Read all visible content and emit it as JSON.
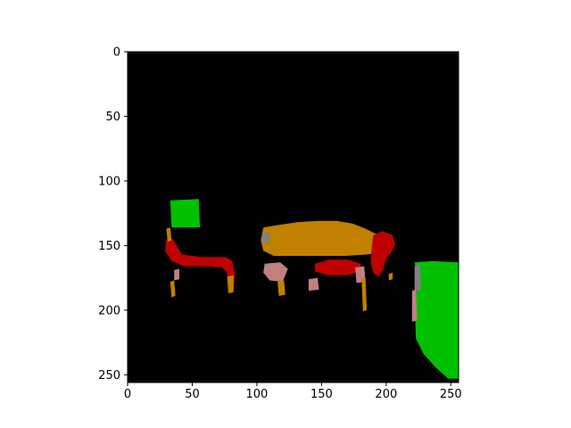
{
  "chart_data": {
    "type": "heatmap",
    "title": "",
    "xlabel": "",
    "ylabel": "",
    "xlim": [
      0,
      256
    ],
    "ylim": [
      256,
      0
    ],
    "grid": false,
    "legend": "none",
    "x_ticks": [
      "0",
      "50",
      "100",
      "150",
      "200",
      "250"
    ],
    "y_ticks": [
      "0",
      "50",
      "100",
      "150",
      "200",
      "250"
    ],
    "background_color": "#000000",
    "colors": {
      "green": "#00c000",
      "orange": "#c08000",
      "red": "#c00000",
      "pink": "#c08080",
      "gray": "#808080"
    },
    "regions": [
      {
        "color": "green",
        "points": [
          [
            33,
            115
          ],
          [
            55,
            114
          ],
          [
            56,
            136
          ],
          [
            34,
            136
          ]
        ]
      },
      {
        "color": "green",
        "points": [
          [
            222,
            163
          ],
          [
            235,
            162
          ],
          [
            256,
            163
          ],
          [
            256,
            253
          ],
          [
            248,
            253
          ],
          [
            238,
            244
          ],
          [
            229,
            234
          ],
          [
            223,
            222
          ],
          [
            222,
            195
          ],
          [
            224,
            177
          ]
        ]
      },
      {
        "color": "orange",
        "points": [
          [
            105,
            136
          ],
          [
            117,
            134
          ],
          [
            131,
            132
          ],
          [
            147,
            131
          ],
          [
            162,
            131
          ],
          [
            174,
            133
          ],
          [
            184,
            137
          ],
          [
            192,
            141
          ],
          [
            198,
            146
          ],
          [
            200,
            150
          ],
          [
            197,
            155
          ],
          [
            185,
            157
          ],
          [
            168,
            158
          ],
          [
            148,
            158
          ],
          [
            130,
            158
          ],
          [
            113,
            158
          ],
          [
            105,
            154
          ],
          [
            103,
            146
          ]
        ]
      },
      {
        "color": "red",
        "points": [
          [
            30,
            145
          ],
          [
            35,
            145
          ],
          [
            42,
            157
          ],
          [
            58,
            159
          ],
          [
            76,
            159
          ],
          [
            81,
            162
          ],
          [
            83,
            172
          ],
          [
            82,
            183
          ],
          [
            79,
            184
          ],
          [
            77,
            171
          ],
          [
            73,
            167
          ],
          [
            62,
            166
          ],
          [
            44,
            166
          ],
          [
            34,
            162
          ],
          [
            29,
            154
          ]
        ]
      },
      {
        "color": "red",
        "points": [
          [
            190,
            142
          ],
          [
            197,
            139
          ],
          [
            205,
            142
          ],
          [
            207,
            149
          ],
          [
            204,
            155
          ],
          [
            200,
            160
          ],
          [
            198,
            168
          ],
          [
            194,
            174
          ],
          [
            190,
            171
          ],
          [
            188,
            163
          ],
          [
            189,
            150
          ]
        ]
      },
      {
        "color": "red",
        "points": [
          [
            145,
            164
          ],
          [
            156,
            161
          ],
          [
            170,
            161
          ],
          [
            180,
            164
          ],
          [
            180,
            170
          ],
          [
            170,
            173
          ],
          [
            155,
            173
          ],
          [
            145,
            170
          ]
        ]
      },
      {
        "color": "pink",
        "points": [
          [
            106,
            164
          ],
          [
            118,
            163
          ],
          [
            124,
            168
          ],
          [
            120,
            178
          ],
          [
            110,
            177
          ],
          [
            105,
            171
          ]
        ]
      },
      {
        "color": "pink",
        "points": [
          [
            176,
            167
          ],
          [
            183,
            166
          ],
          [
            184,
            178
          ],
          [
            177,
            179
          ]
        ]
      },
      {
        "color": "orange",
        "points": [
          [
            116,
            178
          ],
          [
            121,
            177
          ],
          [
            122,
            188
          ],
          [
            117,
            189
          ]
        ]
      },
      {
        "color": "pink",
        "points": [
          [
            140,
            176
          ],
          [
            147,
            175
          ],
          [
            148,
            184
          ],
          [
            140,
            185
          ]
        ]
      },
      {
        "color": "orange",
        "points": [
          [
            202,
            172
          ],
          [
            205,
            171
          ],
          [
            205,
            176
          ],
          [
            202,
            177
          ]
        ]
      },
      {
        "color": "gray",
        "points": [
          [
            222,
            166
          ],
          [
            226,
            164
          ],
          [
            227,
            184
          ],
          [
            222,
            186
          ]
        ]
      },
      {
        "color": "pink",
        "points": [
          [
            220,
            185
          ],
          [
            223,
            184
          ],
          [
            224,
            208
          ],
          [
            220,
            209
          ]
        ]
      },
      {
        "color": "orange",
        "points": [
          [
            33,
            178
          ],
          [
            36,
            177
          ],
          [
            37,
            189
          ],
          [
            34,
            190
          ]
        ]
      },
      {
        "color": "pink",
        "points": [
          [
            36,
            169
          ],
          [
            40,
            168
          ],
          [
            40,
            176
          ],
          [
            36,
            177
          ]
        ]
      },
      {
        "color": "gray",
        "points": [
          [
            104,
            141
          ],
          [
            110,
            140
          ],
          [
            110,
            147
          ],
          [
            104,
            148
          ]
        ]
      },
      {
        "color": "orange",
        "points": [
          [
            77,
            174
          ],
          [
            82,
            173
          ],
          [
            82,
            186
          ],
          [
            78,
            187
          ]
        ]
      },
      {
        "color": "orange",
        "points": [
          [
            181,
            176
          ],
          [
            184,
            175
          ],
          [
            185,
            200
          ],
          [
            182,
            201
          ]
        ]
      },
      {
        "color": "orange",
        "points": [
          [
            30,
            137
          ],
          [
            33,
            136
          ],
          [
            34,
            146
          ],
          [
            31,
            147
          ]
        ]
      }
    ]
  }
}
